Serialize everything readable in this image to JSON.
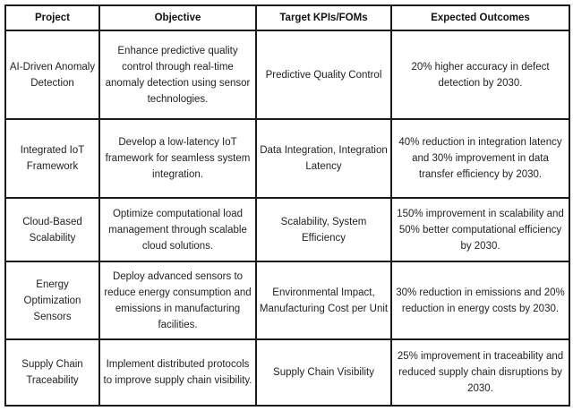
{
  "table": {
    "headers": [
      "Project",
      "Objective",
      "Target KPIs/FOMs",
      "Expected Outcomes"
    ],
    "rows": [
      {
        "project": "AI-Driven Anomaly\nDetection",
        "objective": "Enhance predictive quality\ncontrol through real-time\nanomaly detection using sensor\ntechnologies.",
        "kpis": "Predictive Quality Control",
        "outcomes": "20% higher accuracy in defect\ndetection by 2030."
      },
      {
        "project": "Integrated IoT\nFramework",
        "objective": "Develop a low-latency IoT\nframework for seamless system\nintegration.",
        "kpis": "Data Integration, Integration\nLatency",
        "outcomes": "40% reduction in integration latency\nand 30% improvement in data\ntransfer efficiency by 2030."
      },
      {
        "project": "Cloud-Based\nScalability",
        "objective": "Optimize computational load\nmanagement through scalable\ncloud solutions.",
        "kpis": "Scalability, System\nEfficiency",
        "outcomes": "150% improvement in scalability and\n50% better computational efficiency\nby 2030."
      },
      {
        "project": "Energy\nOptimization\nSensors",
        "objective": "Deploy advanced sensors to\nreduce energy consumption and\nemissions in manufacturing\nfacilities.",
        "kpis": "Environmental Impact,\nManufacturing Cost per Unit",
        "outcomes": "30% reduction in emissions and 20%\nreduction in energy costs by 2030."
      },
      {
        "project": "Supply Chain\nTraceability",
        "objective": "Implement distributed protocols\nto improve supply chain visibility.",
        "kpis": "Supply Chain Visibility",
        "outcomes": "25% improvement in traceability and\nreduced supply chain disruptions by\n2030."
      }
    ]
  }
}
